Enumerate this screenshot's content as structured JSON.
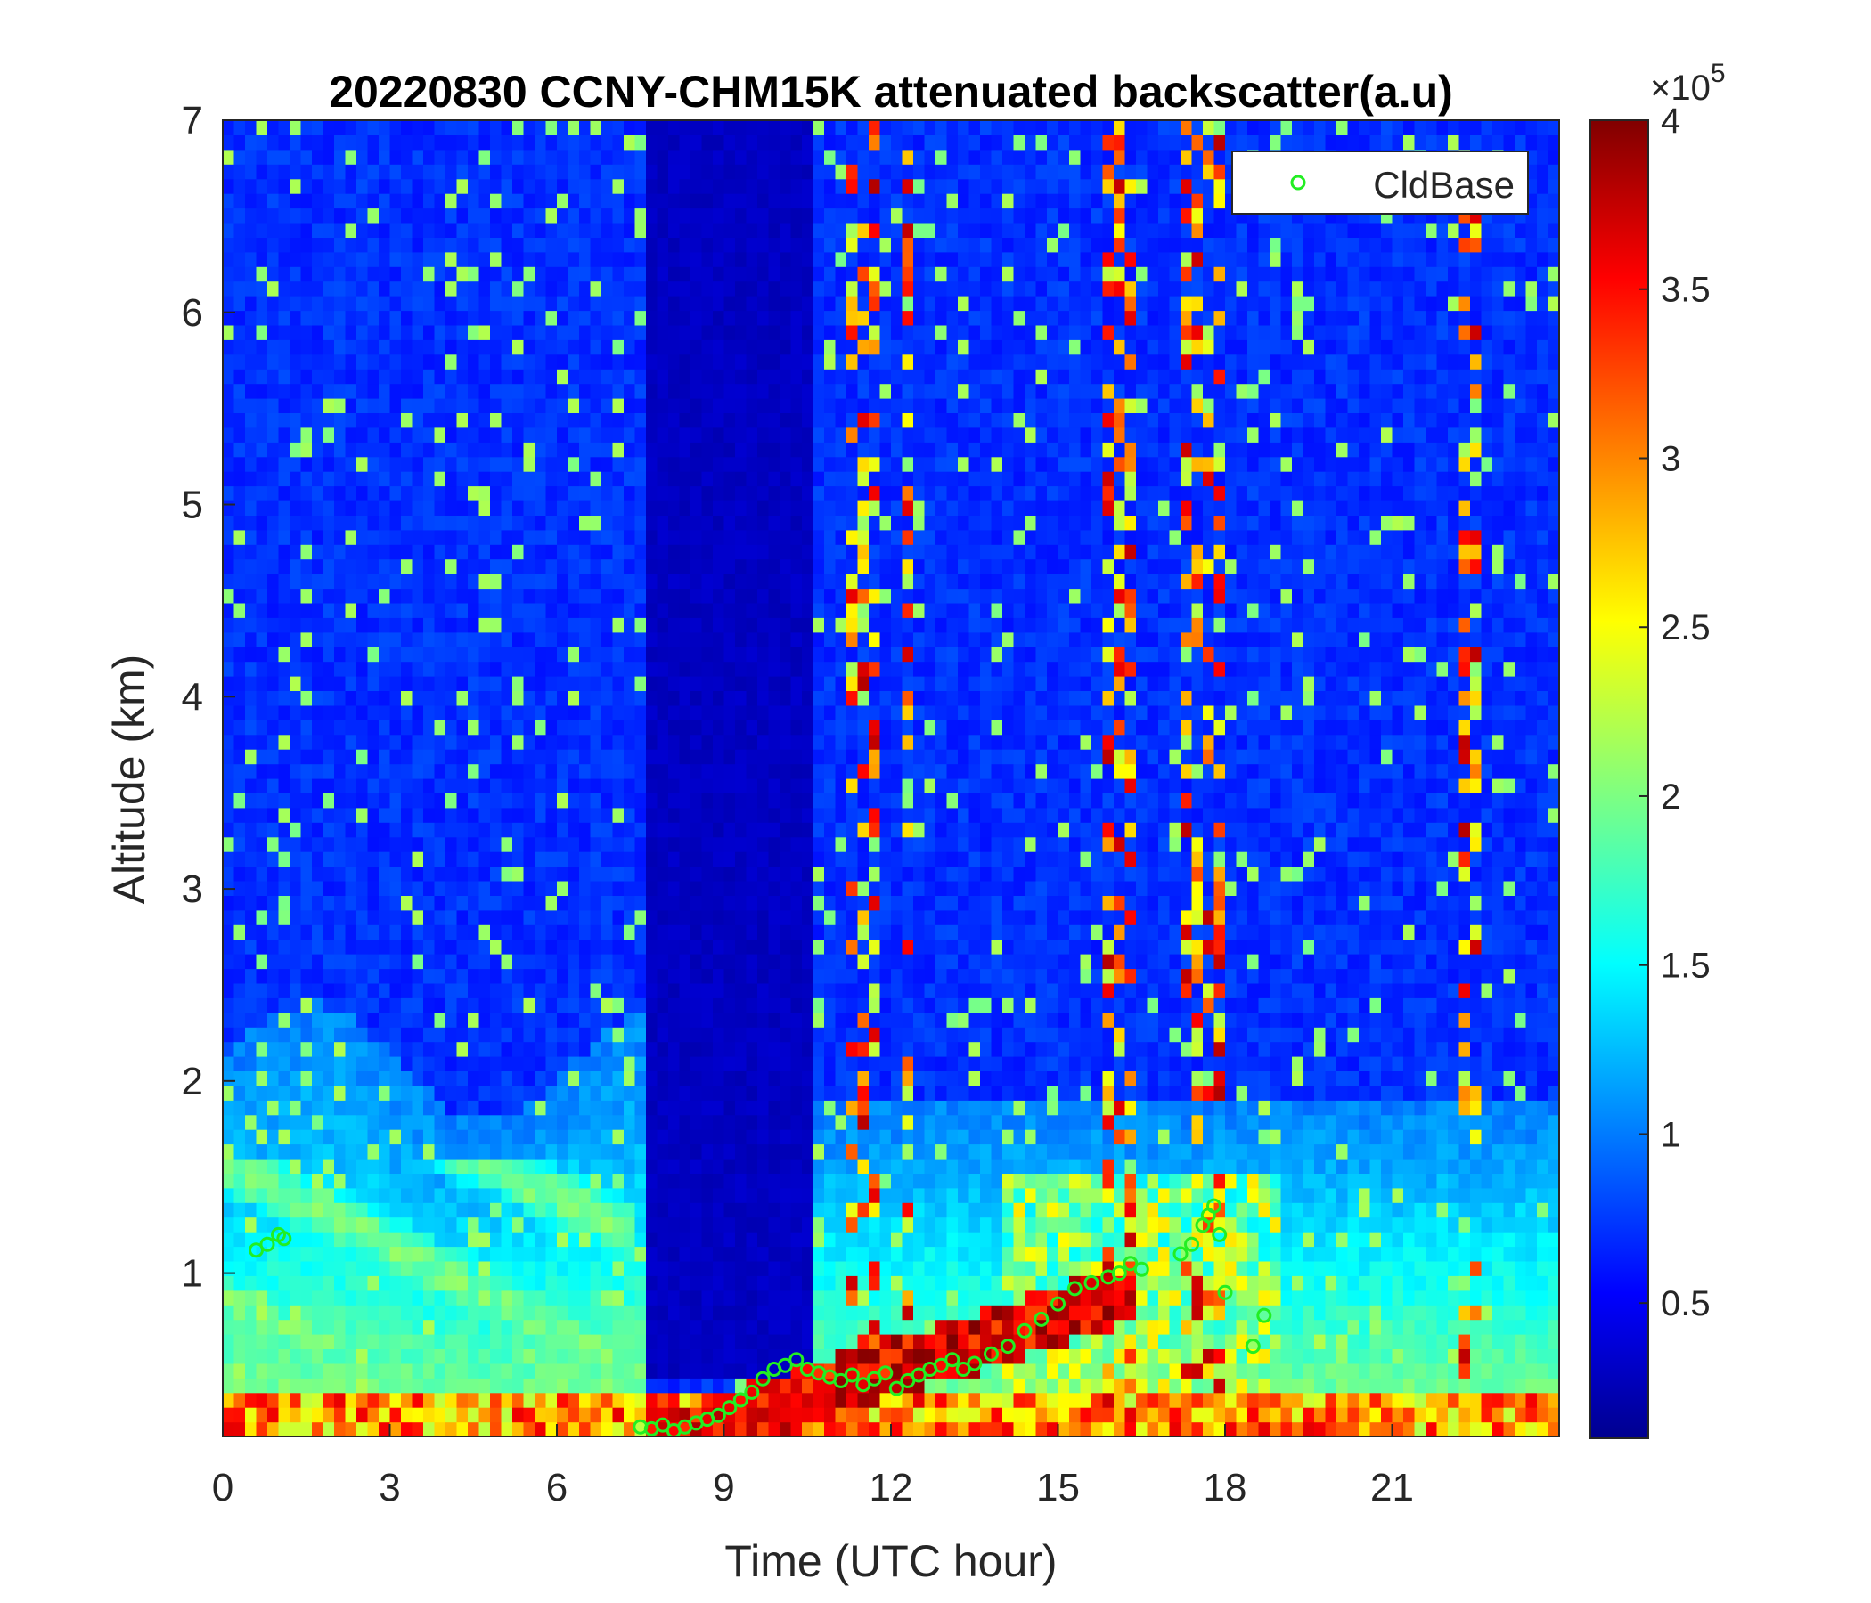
{
  "chart_data": {
    "type": "heatmap",
    "title": "20220830 CCNY-CHM15K attenuated backscatter(a.u)",
    "xlabel": "Time (UTC hour)",
    "ylabel": "Altitude (km)",
    "xlim": [
      0,
      24
    ],
    "ylim": [
      0.15,
      7
    ],
    "xticks": [
      0,
      3,
      6,
      9,
      12,
      15,
      18,
      21
    ],
    "yticks": [
      1,
      2,
      3,
      4,
      5,
      6,
      7
    ],
    "colorbar": {
      "colormap": "jet",
      "clim": [
        0.1,
        4
      ],
      "ticks": [
        0.5,
        1,
        1.5,
        2,
        2.5,
        3,
        3.5,
        4
      ],
      "multiplier_text": "×10",
      "multiplier_exponent": "5"
    },
    "legend": {
      "placement": "top-right",
      "entries": [
        "CldBase"
      ]
    },
    "colors": {
      "cloud_base_marker": "#22ee22"
    },
    "series": [
      {
        "name": "CldBase",
        "kind": "scatter",
        "x": [
          0.6,
          0.8,
          1.0,
          1.1,
          7.5,
          7.7,
          7.9,
          8.1,
          8.3,
          8.5,
          8.7,
          8.9,
          9.1,
          9.3,
          9.5,
          9.7,
          9.9,
          10.1,
          10.3,
          10.5,
          10.7,
          10.9,
          11.1,
          11.3,
          11.5,
          11.7,
          11.9,
          12.1,
          12.3,
          12.5,
          12.7,
          12.9,
          13.1,
          13.3,
          13.5,
          13.8,
          14.1,
          14.4,
          14.7,
          15.0,
          15.3,
          15.6,
          15.9,
          16.1,
          16.3,
          16.5,
          17.2,
          17.4,
          17.6,
          17.7,
          17.8,
          17.9,
          18.0,
          18.5,
          18.7
        ],
        "y": [
          1.12,
          1.15,
          1.2,
          1.18,
          0.2,
          0.19,
          0.21,
          0.18,
          0.2,
          0.22,
          0.24,
          0.26,
          0.3,
          0.34,
          0.38,
          0.45,
          0.5,
          0.52,
          0.55,
          0.5,
          0.48,
          0.46,
          0.44,
          0.47,
          0.42,
          0.45,
          0.48,
          0.4,
          0.44,
          0.47,
          0.5,
          0.52,
          0.55,
          0.5,
          0.53,
          0.58,
          0.62,
          0.7,
          0.76,
          0.84,
          0.92,
          0.95,
          0.98,
          1.0,
          1.05,
          1.02,
          1.1,
          1.15,
          1.25,
          1.3,
          1.35,
          1.2,
          0.9,
          0.62,
          0.78
        ]
      }
    ]
  }
}
